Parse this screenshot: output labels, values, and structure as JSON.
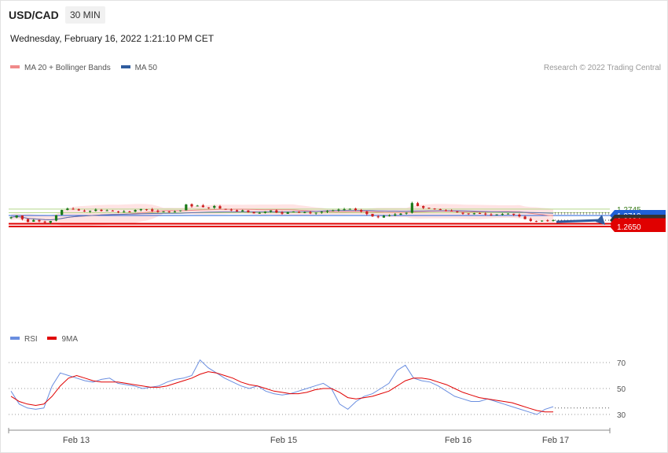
{
  "header": {
    "symbol": "USD/CAD",
    "timeframe": "30 MIN",
    "datetime": "Wednesday, February 16, 2022 1:21:10 PM CET"
  },
  "legend_price": {
    "bollinger_label": "MA 20 + Bollinger Bands",
    "ma50_label": "MA 50",
    "credit": "Research © 2022 Trading Central"
  },
  "legend_rsi": {
    "rsi_label": "RSI",
    "ma_label": "9MA"
  },
  "colors": {
    "bull": "#1a7a1a",
    "bear": "#cc1f1f",
    "band_fill": "#ffdede",
    "ma20": "#f08a8a",
    "ma50": "#5a6fb0",
    "green_level": "#b5d88a",
    "blue_level": "#2060d8",
    "red_level": "#e00000",
    "dark_level": "#333333",
    "rsi": "#6a8ee0",
    "rsi_ma": "#e00000",
    "arrow": "#2f5c9e"
  },
  "chart_data": [
    {
      "type": "candlestick",
      "levels": [
        {
          "value": 1.2745,
          "label": "1.2745",
          "style": "green"
        },
        {
          "value": 1.2725,
          "label": "1.2725",
          "style": "green"
        },
        {
          "value": 1.271,
          "label": "1.2710",
          "style": "blue"
        },
        {
          "value": 1.2684,
          "label": "1.2684",
          "style": "current"
        },
        {
          "value": 1.2665,
          "label": "1.2665",
          "style": "red"
        },
        {
          "value": 1.265,
          "label": "1.2650",
          "style": "red"
        }
      ],
      "x_tick_labels": [
        "Feb 13",
        "Feb 15",
        "Feb 16",
        "Feb 17"
      ],
      "projection": {
        "from": 1.2684,
        "to": 1.265
      },
      "price_path": [
        1.27,
        1.271,
        1.269,
        1.2675,
        1.2685,
        1.2678,
        1.2672,
        1.268,
        1.2712,
        1.274,
        1.2748,
        1.2745,
        1.2738,
        1.2732,
        1.2736,
        1.2742,
        1.2735,
        1.2738,
        1.2734,
        1.2728,
        1.2732,
        1.273,
        1.274,
        1.2745,
        1.2742,
        1.2735,
        1.273,
        1.2733,
        1.2728,
        1.2732,
        1.2738,
        1.277,
        1.276,
        1.2764,
        1.2756,
        1.2752,
        1.2762,
        1.2748,
        1.2742,
        1.274,
        1.2732,
        1.2738,
        1.2728,
        1.2722,
        1.2725,
        1.2732,
        1.2738,
        1.2726,
        1.272,
        1.2728,
        1.2732,
        1.2725,
        1.2728,
        1.2722,
        1.2726,
        1.273,
        1.2736,
        1.2738,
        1.2742,
        1.2744,
        1.2746,
        1.274,
        1.2732,
        1.2718,
        1.2705,
        1.27,
        1.2708,
        1.2712,
        1.2716,
        1.272,
        1.2726,
        1.2778,
        1.2762,
        1.2752,
        1.2748,
        1.2745,
        1.274,
        1.2736,
        1.2733,
        1.2728,
        1.272,
        1.2718,
        1.2722,
        1.272,
        1.2716,
        1.2714,
        1.2716,
        1.2718,
        1.272,
        1.2714,
        1.2705,
        1.269,
        1.268,
        1.2678,
        1.2682,
        1.268,
        1.2684
      ]
    },
    {
      "type": "line",
      "title": "RSI",
      "y_ticks": [
        70,
        50,
        30
      ],
      "rsi_path": [
        48,
        38,
        35,
        34,
        35,
        52,
        62,
        60,
        58,
        56,
        55,
        57,
        58,
        54,
        53,
        52,
        50,
        51,
        52,
        55,
        57,
        58,
        60,
        72,
        66,
        62,
        58,
        55,
        52,
        50,
        52,
        48,
        46,
        45,
        46,
        48,
        50,
        52,
        54,
        50,
        38,
        34,
        40,
        44,
        46,
        50,
        54,
        64,
        68,
        58,
        56,
        55,
        52,
        48,
        44,
        42,
        40,
        40,
        42,
        40,
        38,
        36,
        34,
        32,
        30,
        34,
        36
      ],
      "ma_path": [
        44,
        40,
        38,
        37,
        38,
        44,
        52,
        58,
        60,
        58,
        56,
        55,
        55,
        55,
        54,
        53,
        52,
        51,
        51,
        52,
        54,
        56,
        58,
        61,
        63,
        62,
        60,
        58,
        55,
        53,
        52,
        50,
        48,
        47,
        46,
        46,
        47,
        49,
        50,
        50,
        47,
        43,
        42,
        43,
        44,
        46,
        48,
        52,
        56,
        58,
        58,
        57,
        55,
        53,
        50,
        47,
        45,
        43,
        42,
        41,
        40,
        39,
        37,
        35,
        33,
        32,
        32
      ]
    }
  ]
}
